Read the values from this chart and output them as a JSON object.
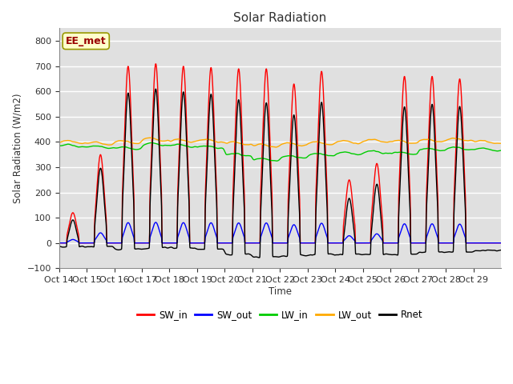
{
  "title": "Solar Radiation",
  "ylabel": "Solar Radiation (W/m2)",
  "xlabel": "Time",
  "ylim": [
    -100,
    850
  ],
  "annotation": "EE_met",
  "bg_color": "#e0e0e0",
  "line_colors": {
    "SW_in": "#ff0000",
    "SW_out": "#0000ff",
    "LW_in": "#00cc00",
    "LW_out": "#ffaa00",
    "Rnet": "#000000"
  },
  "xtick_labels": [
    "Oct 14",
    "Oct 15",
    "Oct 16",
    "Oct 17",
    "Oct 18",
    "Oct 19",
    "Oct 20",
    "Oct 21",
    "Oct 22",
    "Oct 23",
    "Oct 24",
    "Oct 25",
    "Oct 26",
    "Oct 27",
    "Oct 28",
    "Oct 29"
  ],
  "num_days": 16,
  "points_per_day": 144
}
